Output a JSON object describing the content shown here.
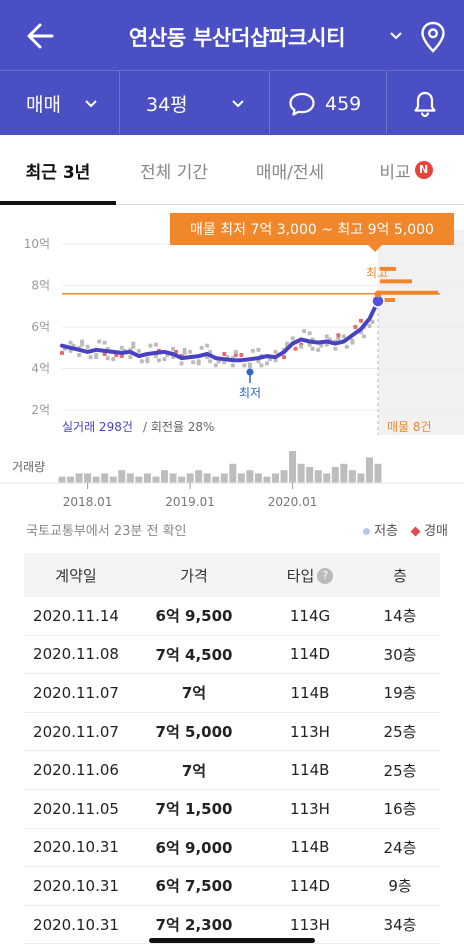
{
  "header": {
    "title": "연산동 부산더샵파크시티",
    "colors": {
      "primary": "#4b4fc4",
      "accent": "#f0872b"
    }
  },
  "filters": {
    "deal_type": "매매",
    "size": "34평",
    "comment_count": "459"
  },
  "tabs": [
    {
      "label": "최근 3년",
      "active": true
    },
    {
      "label": "전체 기간",
      "active": false
    },
    {
      "label": "매매/전세",
      "active": false
    },
    {
      "label": "비교",
      "active": false,
      "badge": "N"
    }
  ],
  "chart": {
    "tooltip": "매물 최저 7억 3,000 ~ 최고 9억 5,000",
    "y_ticks": [
      "10억",
      "8억",
      "6억",
      "4억",
      "2억"
    ],
    "x_ticks": [
      "2018.01",
      "2019.01",
      "2020.01"
    ],
    "low_label": "최저",
    "high_label": "최고",
    "volume_label": "거래량",
    "trades_count": "실거래 298건",
    "turnover": "/ 회전율 28%",
    "listings": "매물 8건"
  },
  "chart_data": {
    "type": "line",
    "ylabel": "",
    "y_unit": "억",
    "ylim": [
      1.5,
      10.5
    ],
    "x": [
      "2017.10",
      "2017.11",
      "2017.12",
      "2018.01",
      "2018.02",
      "2018.03",
      "2018.04",
      "2018.05",
      "2018.06",
      "2018.07",
      "2018.08",
      "2018.09",
      "2018.10",
      "2018.11",
      "2018.12",
      "2019.01",
      "2019.02",
      "2019.03",
      "2019.04",
      "2019.05",
      "2019.06",
      "2019.07",
      "2019.08",
      "2019.09",
      "2019.10",
      "2019.11",
      "2019.12",
      "2020.01",
      "2020.02",
      "2020.03",
      "2020.04",
      "2020.05",
      "2020.06",
      "2020.07",
      "2020.08",
      "2020.09",
      "2020.10",
      "2020.11"
    ],
    "series": [
      {
        "values": [
          5.1,
          5.0,
          4.9,
          4.8,
          4.9,
          4.85,
          4.8,
          4.75,
          4.8,
          4.6,
          4.7,
          4.75,
          4.8,
          4.7,
          4.5,
          4.55,
          4.6,
          4.7,
          4.5,
          4.45,
          4.4,
          4.4,
          4.45,
          4.5,
          4.6,
          4.55,
          4.8,
          5.2,
          5.4,
          5.3,
          5.25,
          5.3,
          5.2,
          5.3,
          5.6,
          5.9,
          6.4,
          7.25
        ]
      }
    ],
    "listing_price_line": 7.6,
    "listing_range": {
      "min": 7.3,
      "max": 9.5
    },
    "volume": [
      2,
      2,
      3,
      3,
      2,
      3,
      2,
      4,
      3,
      2,
      3,
      2,
      4,
      3,
      2,
      3,
      4,
      3,
      2,
      3,
      6,
      3,
      4,
      3,
      2,
      3,
      4,
      10,
      6,
      5,
      4,
      3,
      5,
      6,
      4,
      3,
      8,
      6
    ]
  },
  "source_note": "국토교통부에서 23분 전 확인",
  "legend": {
    "low_floor": "저층",
    "deal": "경매"
  },
  "table": {
    "headers": [
      "계약일",
      "가격",
      "타입",
      "층"
    ],
    "rows": [
      {
        "date": "2020.11.14",
        "price": "6억 9,500",
        "type": "114G",
        "floor": "14층"
      },
      {
        "date": "2020.11.08",
        "price": "7억 4,500",
        "type": "114D",
        "floor": "30층"
      },
      {
        "date": "2020.11.07",
        "price": "7억",
        "type": "114B",
        "floor": "19층"
      },
      {
        "date": "2020.11.07",
        "price": "7억 5,000",
        "type": "113H",
        "floor": "25층"
      },
      {
        "date": "2020.11.06",
        "price": "7억",
        "type": "114B",
        "floor": "25층"
      },
      {
        "date": "2020.11.05",
        "price": "7억 1,500",
        "type": "113H",
        "floor": "16층"
      },
      {
        "date": "2020.10.31",
        "price": "6억 9,000",
        "type": "114B",
        "floor": "24층"
      },
      {
        "date": "2020.10.31",
        "price": "6억 7,500",
        "type": "114D",
        "floor": "9층"
      },
      {
        "date": "2020.10.31",
        "price": "7억 2,300",
        "type": "113H",
        "floor": "34층"
      }
    ]
  }
}
